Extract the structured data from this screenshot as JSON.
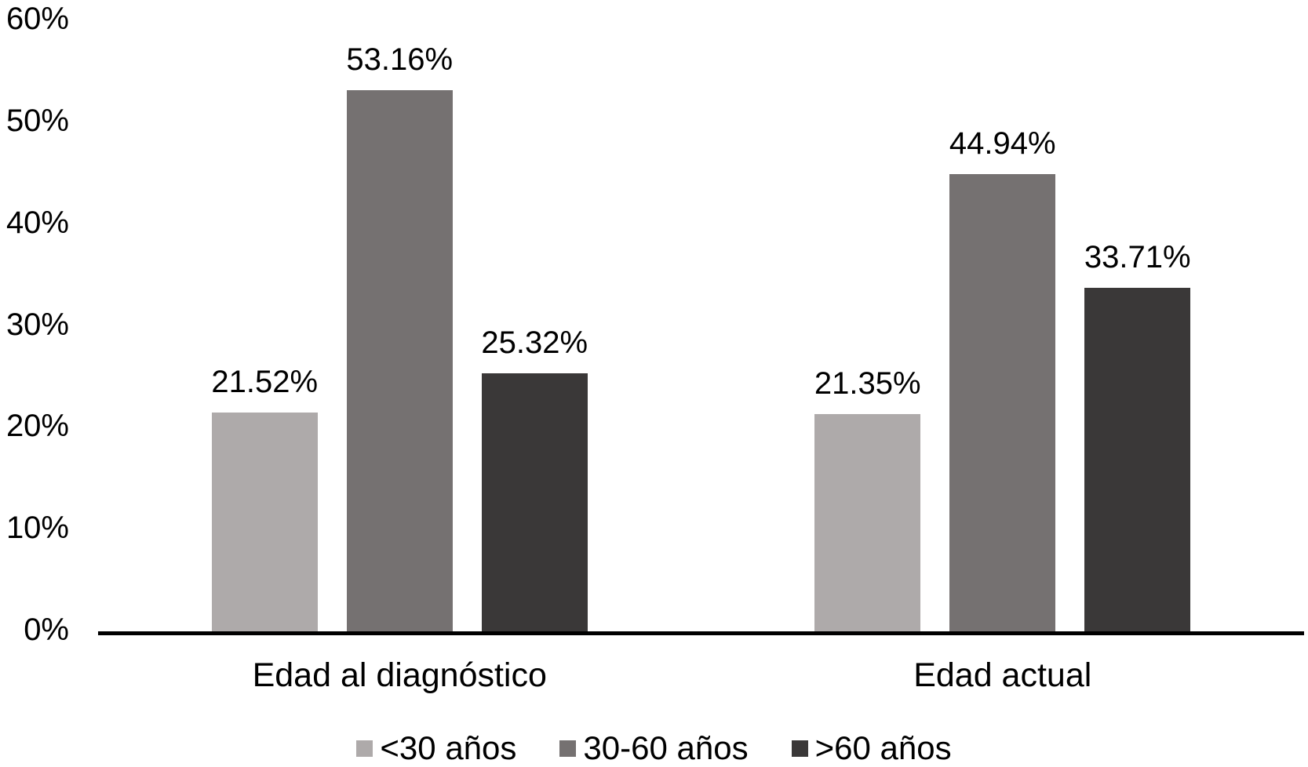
{
  "chart_data": {
    "type": "bar",
    "title": "",
    "xlabel": "",
    "ylabel": "",
    "categories": [
      "Edad al diagnóstico",
      "Edad actual"
    ],
    "series": [
      {
        "name": "<30 años",
        "color": "#aeaaaa",
        "values": [
          21.52,
          21.35
        ],
        "labels": [
          "21.52%",
          "21.35%"
        ]
      },
      {
        "name": "30-60 años",
        "color": "#757171",
        "values": [
          53.16,
          44.94
        ],
        "labels": [
          "53.16%",
          "44.94%"
        ]
      },
      {
        "name": ">60 años",
        "color": "#3a3838",
        "values": [
          25.32,
          33.71
        ],
        "labels": [
          "25.32%",
          "33.71%"
        ]
      }
    ],
    "ylim": [
      0,
      60
    ],
    "y_tick_step": 10,
    "y_ticks": [
      "0%",
      "10%",
      "20%",
      "30%",
      "40%",
      "50%",
      "60%"
    ],
    "grid": false,
    "legend_position": "bottom",
    "colors": {
      "text": "#000000",
      "axis_line": "#000000",
      "background": "#ffffff"
    }
  }
}
